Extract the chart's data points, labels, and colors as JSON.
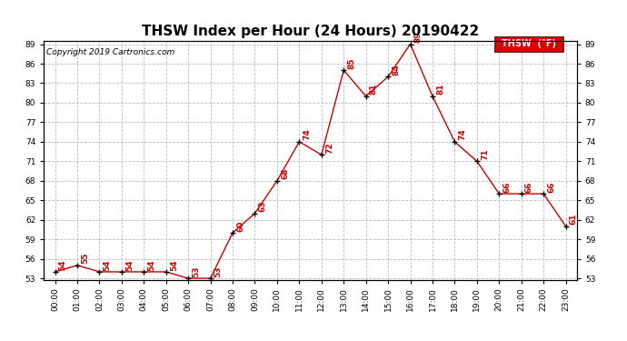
{
  "title": "THSW Index per Hour (24 Hours) 20190422",
  "copyright": "Copyright 2019 Cartronics.com",
  "legend_label": "THSW  (°F)",
  "hours": [
    "00:00",
    "01:00",
    "02:00",
    "03:00",
    "04:00",
    "05:00",
    "06:00",
    "07:00",
    "08:00",
    "09:00",
    "10:00",
    "11:00",
    "12:00",
    "13:00",
    "14:00",
    "15:00",
    "16:00",
    "17:00",
    "18:00",
    "19:00",
    "20:00",
    "21:00",
    "22:00",
    "23:00"
  ],
  "values": [
    54,
    55,
    54,
    54,
    54,
    54,
    53,
    53,
    60,
    63,
    68,
    74,
    72,
    85,
    81,
    84,
    89,
    81,
    74,
    71,
    66,
    66,
    66,
    61
  ],
  "line_color": "#cc0000",
  "marker_color": "#000000",
  "ylim_min": 53.0,
  "ylim_max": 89.0,
  "yticks": [
    53.0,
    56.0,
    59.0,
    62.0,
    65.0,
    68.0,
    71.0,
    74.0,
    77.0,
    80.0,
    83.0,
    86.0,
    89.0
  ],
  "grid_color": "#bbbbbb",
  "background_color": "#ffffff",
  "title_fontsize": 11,
  "label_fontsize": 6.5,
  "annotation_fontsize": 6.5,
  "annotation_color": "#cc0000",
  "copyright_fontsize": 6.5,
  "legend_fontsize": 7
}
